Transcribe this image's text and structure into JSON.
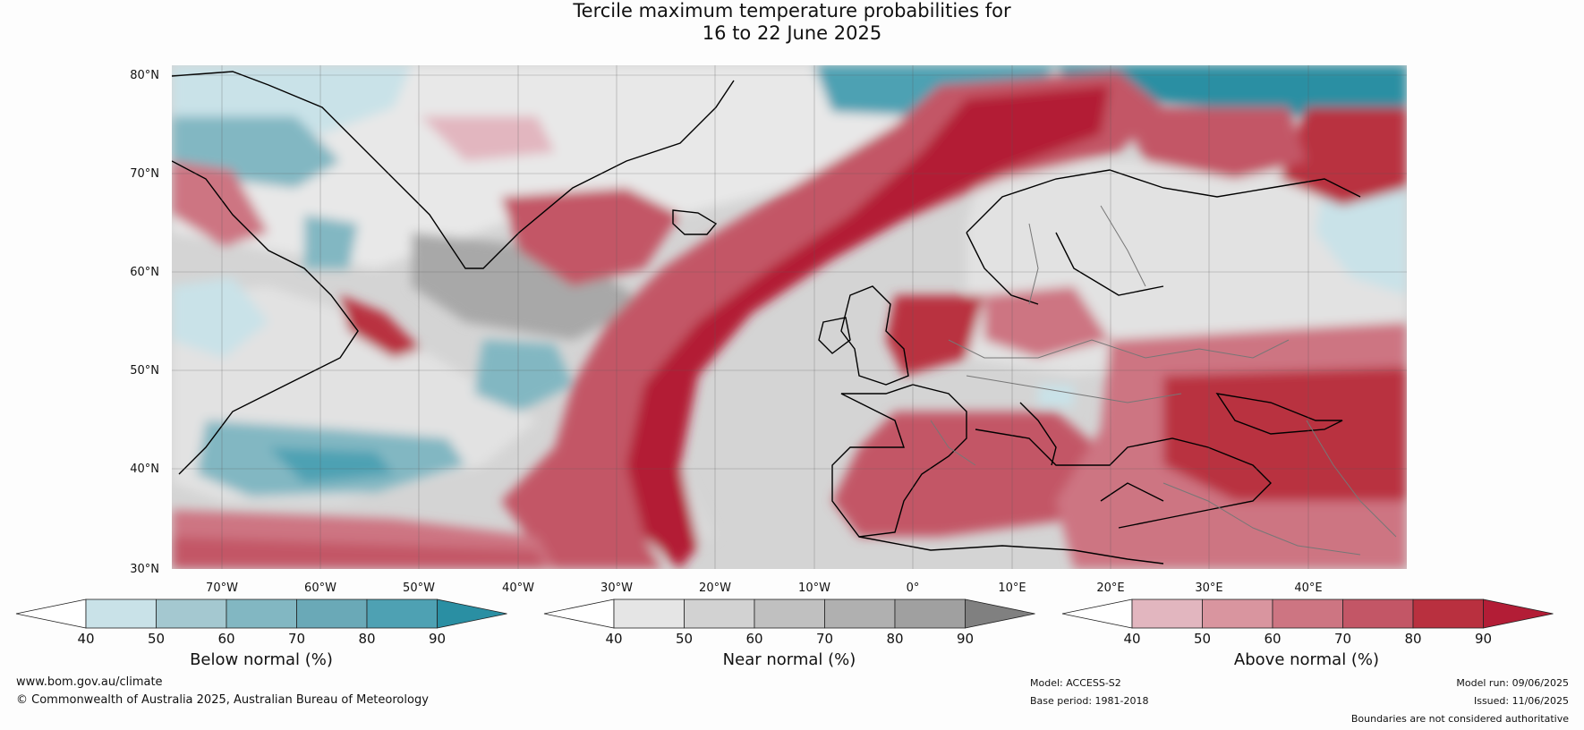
{
  "title": {
    "line1": "Tercile maximum temperature probabilities for",
    "line2": "16 to 22 June 2025"
  },
  "map": {
    "lat_labels": [
      "80°N",
      "70°N",
      "60°N",
      "50°N",
      "40°N",
      "30°N"
    ],
    "lon_labels": [
      "70°W",
      "60°W",
      "50°W",
      "40°W",
      "30°W",
      "20°W",
      "10°W",
      "0°",
      "10°E",
      "20°E",
      "30°E",
      "40°E"
    ],
    "grid": true,
    "extent": {
      "lon_min": "75°W",
      "lon_max": "50°E",
      "lat_min": "30°N",
      "lat_max": "81°N"
    }
  },
  "colorbars": [
    {
      "name": "below",
      "label": "Below normal (%)",
      "ticks": [
        "40",
        "50",
        "60",
        "70",
        "80",
        "90"
      ],
      "colors": [
        "#ffffff",
        "#c9e2e8",
        "#a4c8d0",
        "#82b7c2",
        "#6aa9b7",
        "#4ea1b3",
        "#2a8fa3"
      ]
    },
    {
      "name": "near",
      "label": "Near normal (%)",
      "ticks": [
        "40",
        "50",
        "60",
        "70",
        "80",
        "90"
      ],
      "colors": [
        "#ffffff",
        "#e5e5e5",
        "#d2d2d2",
        "#c0c0c0",
        "#b0b0b0",
        "#a0a0a0",
        "#808080"
      ]
    },
    {
      "name": "above",
      "label": "Above normal (%)",
      "ticks": [
        "40",
        "50",
        "60",
        "70",
        "80",
        "90"
      ],
      "colors": [
        "#ffffff",
        "#e2b6bf",
        "#d9959f",
        "#cd7582",
        "#c35666",
        "#b9303f",
        "#b31d36"
      ]
    }
  ],
  "footer": {
    "website": "www.bom.gov.au/climate",
    "copyright": "© Commonwealth of Australia 2025, Australian Bureau of Meteorology",
    "model": "Model: ACCESS-S2",
    "base_period": "Base period: 1981-2018",
    "model_run": "Model run: 09/06/2025",
    "issued": "Issued: 11/06/2025",
    "disclaimer": "Boundaries are not considered authoritative"
  }
}
